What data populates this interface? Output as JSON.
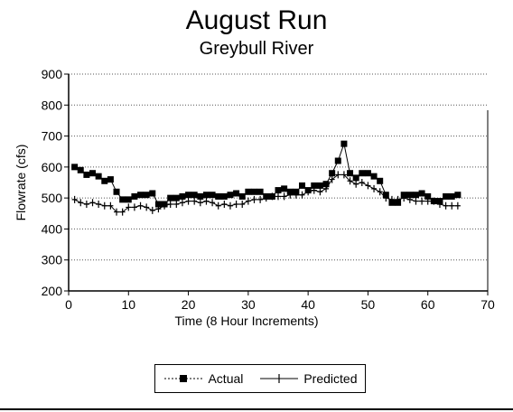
{
  "chart_data": {
    "type": "line",
    "title": "August Run",
    "subtitle": "Greybull River",
    "xlabel": "Time (8 Hour Increments)",
    "ylabel": "Flowrate (cfs)",
    "xlim": [
      0,
      70
    ],
    "ylim": [
      200,
      900
    ],
    "xticks": [
      0,
      10,
      20,
      30,
      40,
      50,
      60,
      70
    ],
    "yticks": [
      200,
      300,
      400,
      500,
      600,
      700,
      800,
      900
    ],
    "grid": "horizontal dotted",
    "legend_position": "bottom-center",
    "x": [
      1,
      2,
      3,
      4,
      5,
      6,
      7,
      8,
      9,
      10,
      11,
      12,
      13,
      14,
      15,
      16,
      17,
      18,
      19,
      20,
      21,
      22,
      23,
      24,
      25,
      26,
      27,
      28,
      29,
      30,
      31,
      32,
      33,
      34,
      35,
      36,
      37,
      38,
      39,
      40,
      41,
      42,
      43,
      44,
      45,
      46,
      47,
      48,
      49,
      50,
      51,
      52,
      53,
      54,
      55,
      56,
      57,
      58,
      59,
      60,
      61,
      62,
      63,
      64,
      65
    ],
    "series": [
      {
        "name": "Actual",
        "marker": "square",
        "color": "#000000",
        "values": [
          600,
          590,
          575,
          580,
          570,
          555,
          560,
          520,
          495,
          495,
          505,
          510,
          510,
          515,
          480,
          480,
          500,
          500,
          505,
          510,
          510,
          505,
          510,
          510,
          505,
          505,
          510,
          515,
          505,
          520,
          520,
          520,
          505,
          505,
          525,
          530,
          520,
          520,
          540,
          525,
          540,
          540,
          545,
          580,
          620,
          675,
          580,
          565,
          580,
          580,
          570,
          555,
          510,
          485,
          485,
          510,
          510,
          510,
          515,
          505,
          490,
          490,
          505,
          505,
          510
        ]
      },
      {
        "name": "Predicted",
        "marker": "plus",
        "color": "#000000",
        "values": [
          495,
          485,
          480,
          485,
          480,
          475,
          475,
          455,
          455,
          470,
          470,
          475,
          470,
          460,
          465,
          475,
          480,
          480,
          485,
          490,
          490,
          485,
          490,
          485,
          475,
          480,
          475,
          480,
          480,
          490,
          495,
          495,
          500,
          505,
          505,
          505,
          510,
          510,
          510,
          520,
          525,
          520,
          530,
          560,
          575,
          575,
          555,
          545,
          550,
          540,
          530,
          520,
          500,
          495,
          495,
          500,
          495,
          490,
          490,
          490,
          490,
          480,
          475,
          475,
          475
        ]
      }
    ]
  }
}
